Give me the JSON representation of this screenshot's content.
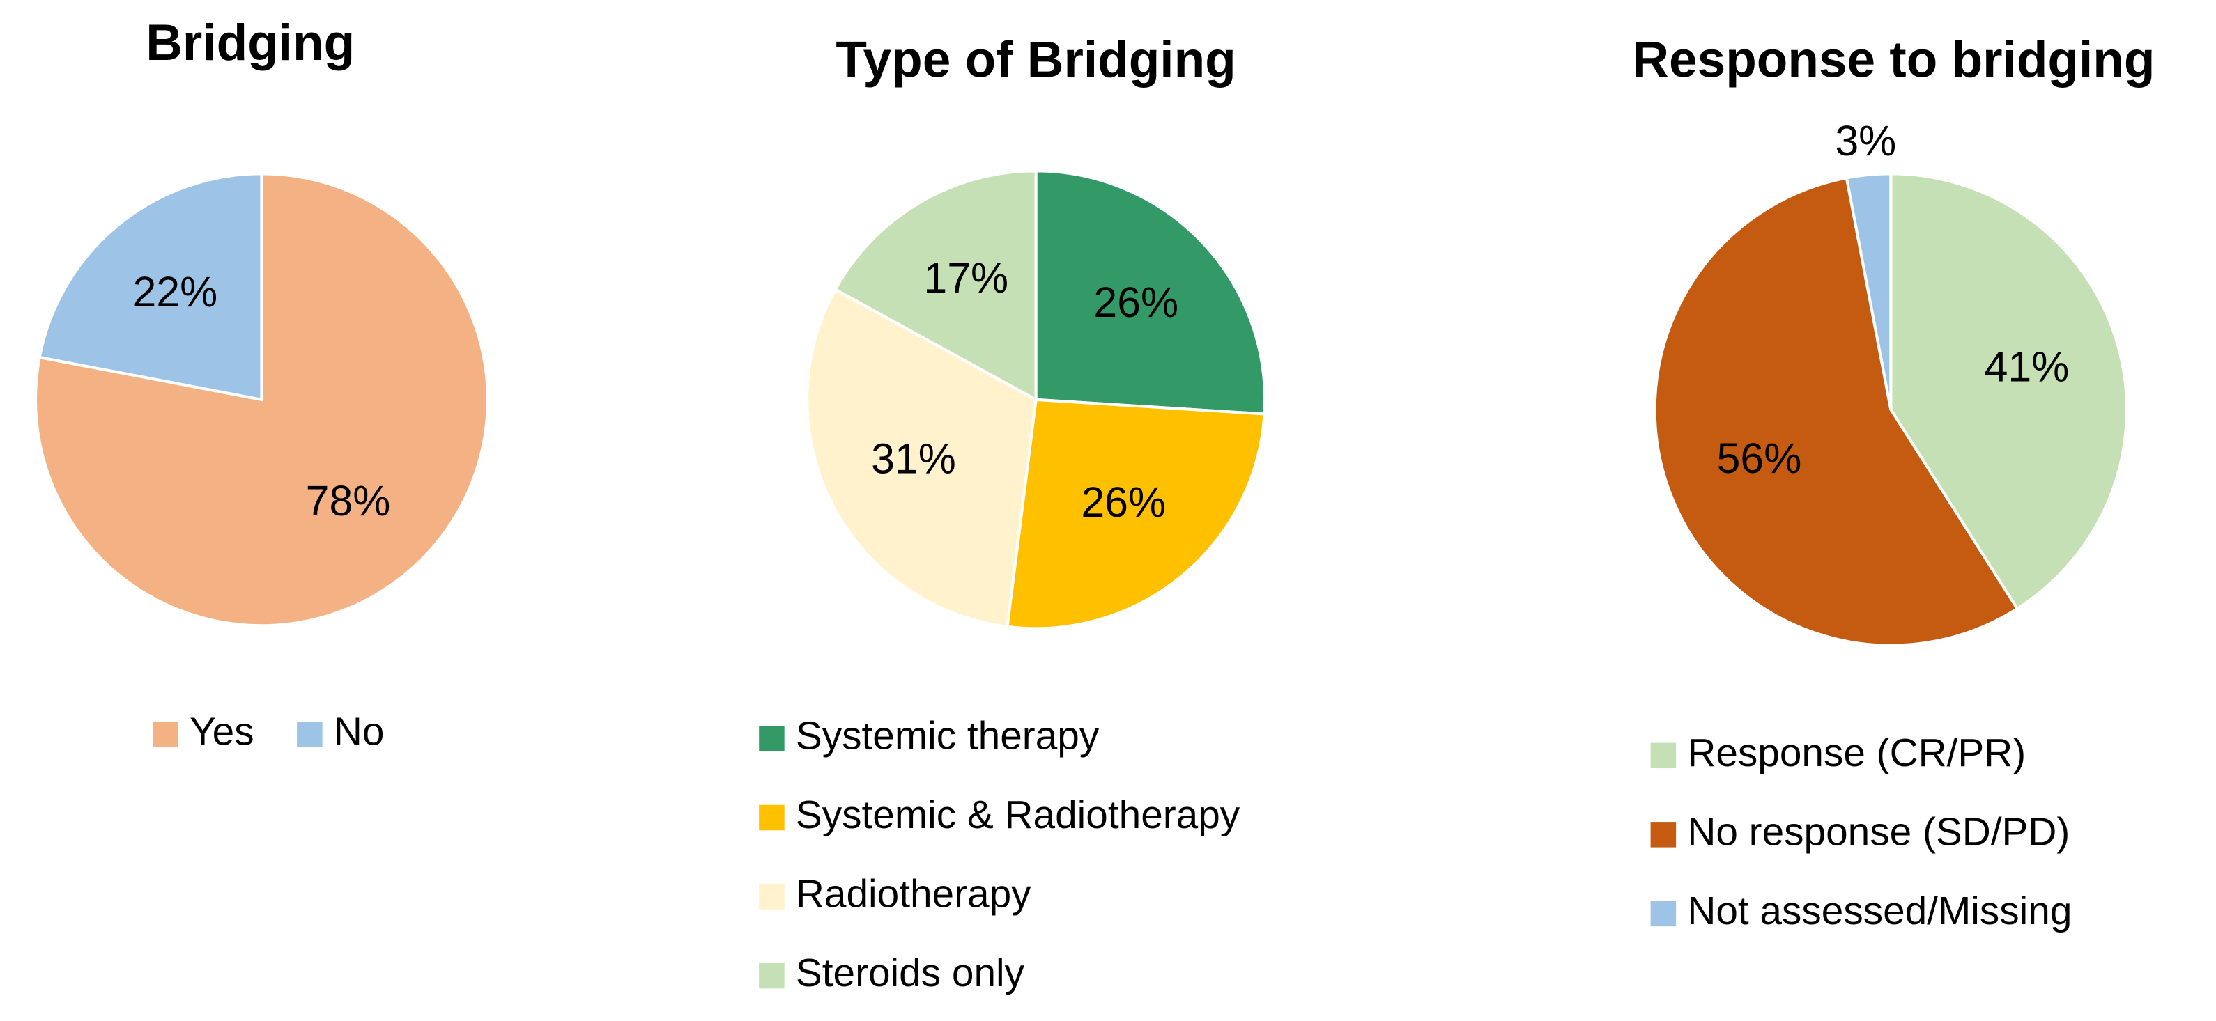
{
  "chart_data": [
    {
      "type": "pie",
      "title": "Bridging",
      "categories": [
        "Yes",
        "No"
      ],
      "values": [
        78,
        22
      ],
      "value_labels": [
        "78%",
        "22%"
      ],
      "colors": [
        "#F4B183",
        "#9DC3E6"
      ],
      "legend_orientation": "horizontal"
    },
    {
      "type": "pie",
      "title": "Type of Bridging",
      "categories": [
        "Systemic therapy",
        "Systemic & Radiotherapy",
        "Radiotherapy",
        "Steroids only"
      ],
      "values": [
        26,
        26,
        31,
        17
      ],
      "value_labels": [
        "26%",
        "26%",
        "31%",
        "17%"
      ],
      "colors": [
        "#339966",
        "#FFC000",
        "#FFF2CC",
        "#C5E0B4"
      ],
      "legend_orientation": "vertical"
    },
    {
      "type": "pie",
      "title": "Response to bridging",
      "categories": [
        "Response (CR/PR)",
        "No response (SD/PD)",
        "Not assessed/Missing"
      ],
      "values": [
        41,
        56,
        3
      ],
      "value_labels": [
        "41%",
        "56%",
        "3%"
      ],
      "colors": [
        "#C5E0B4",
        "#C55A11",
        "#9DC3E6"
      ],
      "legend_orientation": "vertical"
    }
  ]
}
